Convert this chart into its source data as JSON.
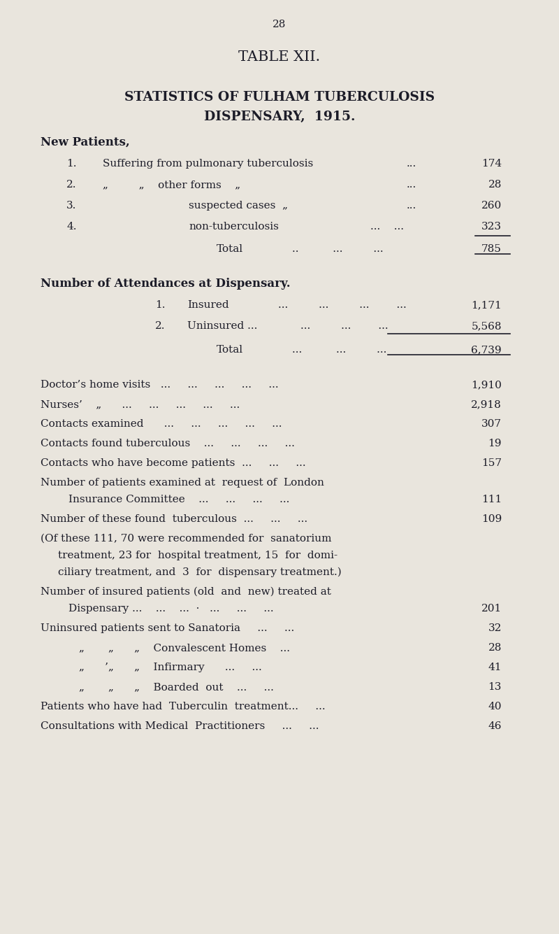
{
  "bg_color": "#e9e5dd",
  "text_color": "#1c1c28",
  "page_num": "28",
  "title1": "TABLE XII.",
  "title2": "STATISTICS OF FULHAM TUBERCULOSIS",
  "title3": "DISPENSARY,  1915."
}
